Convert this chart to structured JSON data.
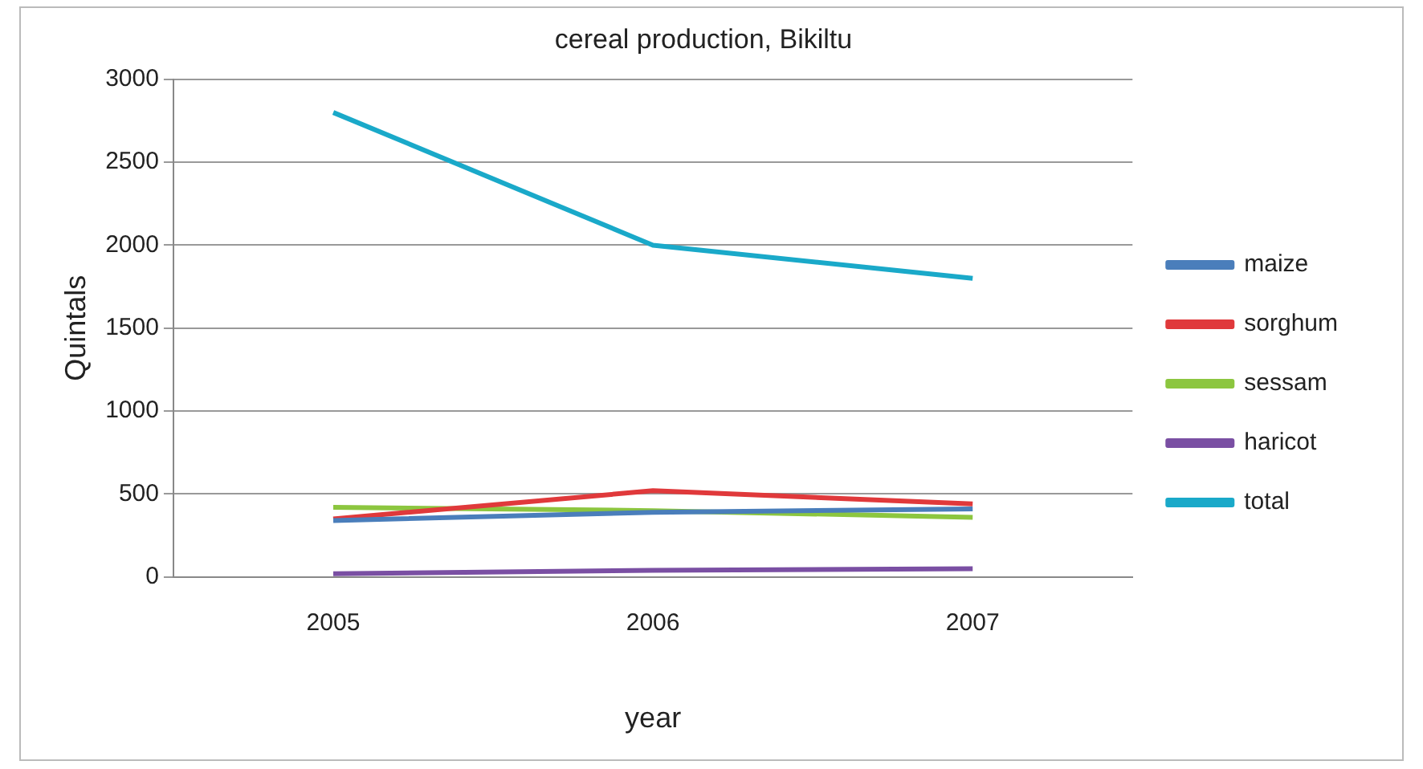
{
  "chart_data": {
    "type": "line",
    "title": "cereal production, Bikiltu",
    "xlabel": "year",
    "ylabel": "Quintals",
    "categories": [
      "2005",
      "2006",
      "2007"
    ],
    "series": [
      {
        "name": "maize",
        "color": "#4a7ebb",
        "values": [
          340,
          390,
          410
        ]
      },
      {
        "name": "sorghum",
        "color": "#e0393b",
        "values": [
          350,
          520,
          440
        ]
      },
      {
        "name": "sessam",
        "color": "#8cc63f",
        "values": [
          420,
          400,
          360
        ]
      },
      {
        "name": "haricot",
        "color": "#7a4fa3",
        "values": [
          20,
          40,
          50
        ]
      },
      {
        "name": "total",
        "color": "#1aa9c9",
        "values": [
          2800,
          2000,
          1800
        ]
      }
    ],
    "ylim": [
      0,
      3000
    ],
    "yticks": [
      0,
      500,
      1000,
      1500,
      2000,
      2500,
      3000
    ],
    "grid": "y",
    "legend": "right",
    "marker": "none",
    "line_style": "solid"
  }
}
